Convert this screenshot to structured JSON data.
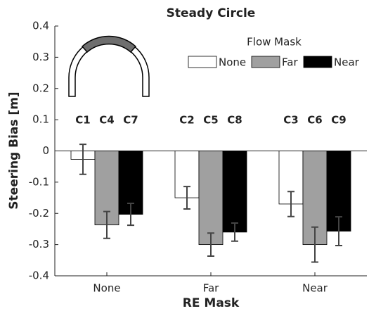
{
  "chart_data": {
    "type": "bar",
    "title": "Steady Circle",
    "x_label": "RE Mask",
    "y_label": "Steering Bias [m]",
    "legend_title": "Flow Mask",
    "categories": [
      "None",
      "Far",
      "Near"
    ],
    "series": [
      {
        "name": "None",
        "color": "#ffffff",
        "values": [
          -0.027,
          -0.15,
          -0.17
        ],
        "errors": [
          0.048,
          0.036,
          0.04
        ],
        "labels": [
          "C1",
          "C2",
          "C3"
        ]
      },
      {
        "name": "Far",
        "color": "#a0a0a0",
        "values": [
          -0.237,
          -0.3,
          -0.3
        ],
        "errors": [
          0.043,
          0.037,
          0.056
        ],
        "labels": [
          "C4",
          "C5",
          "C6"
        ]
      },
      {
        "name": "Near",
        "color": "#000000",
        "values": [
          -0.203,
          -0.26,
          -0.257
        ],
        "errors": [
          0.035,
          0.029,
          0.046
        ],
        "labels": [
          "C7",
          "C8",
          "C9"
        ]
      }
    ],
    "ylim": [
      -0.4,
      0.4
    ],
    "yticks": [
      -0.4,
      -0.3,
      -0.2,
      -0.1,
      0,
      0.1,
      0.2,
      0.3,
      0.4
    ]
  }
}
